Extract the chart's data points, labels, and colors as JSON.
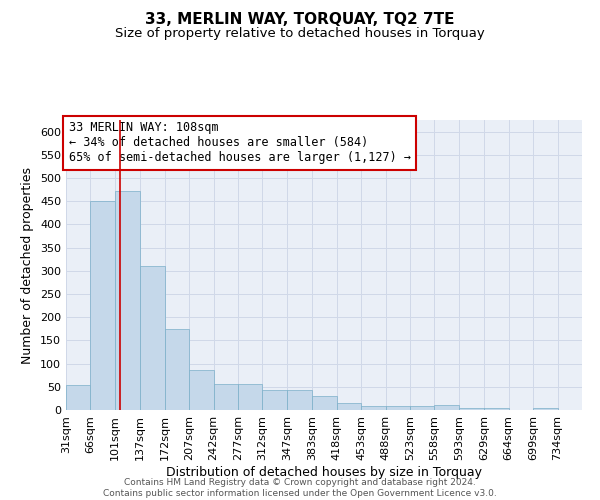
{
  "title": "33, MERLIN WAY, TORQUAY, TQ2 7TE",
  "subtitle": "Size of property relative to detached houses in Torquay",
  "xlabel": "Distribution of detached houses by size in Torquay",
  "ylabel": "Number of detached properties",
  "footer_line1": "Contains HM Land Registry data © Crown copyright and database right 2024.",
  "footer_line2": "Contains public sector information licensed under the Open Government Licence v3.0.",
  "annotation_line1": "33 MERLIN WAY: 108sqm",
  "annotation_line2": "← 34% of detached houses are smaller (584)",
  "annotation_line3": "65% of semi-detached houses are larger (1,127) →",
  "bar_color": "#c5d8ea",
  "bar_edge_color": "#7aaec8",
  "vline_color": "#cc0000",
  "vline_x": 108,
  "categories": [
    "31sqm",
    "66sqm",
    "101sqm",
    "137sqm",
    "172sqm",
    "207sqm",
    "242sqm",
    "277sqm",
    "312sqm",
    "347sqm",
    "383sqm",
    "418sqm",
    "453sqm",
    "488sqm",
    "523sqm",
    "558sqm",
    "593sqm",
    "629sqm",
    "664sqm",
    "699sqm",
    "734sqm"
  ],
  "bin_edges": [
    31,
    66,
    101,
    137,
    172,
    207,
    242,
    277,
    312,
    347,
    383,
    418,
    453,
    488,
    523,
    558,
    593,
    629,
    664,
    699,
    734,
    769
  ],
  "values": [
    53,
    451,
    471,
    310,
    175,
    86,
    57,
    57,
    43,
    43,
    30,
    15,
    9,
    8,
    8,
    10,
    5,
    5,
    0,
    5,
    0
  ],
  "ylim": [
    0,
    625
  ],
  "yticks": [
    0,
    50,
    100,
    150,
    200,
    250,
    300,
    350,
    400,
    450,
    500,
    550,
    600
  ],
  "grid_color": "#d0d8e8",
  "background_color": "#eaeff7",
  "annotation_box_color": "#ffffff",
  "annotation_box_edge": "#cc0000",
  "title_fontsize": 11,
  "subtitle_fontsize": 9.5,
  "axis_label_fontsize": 9,
  "tick_fontsize": 8,
  "annotation_fontsize": 8.5,
  "footer_fontsize": 6.5
}
